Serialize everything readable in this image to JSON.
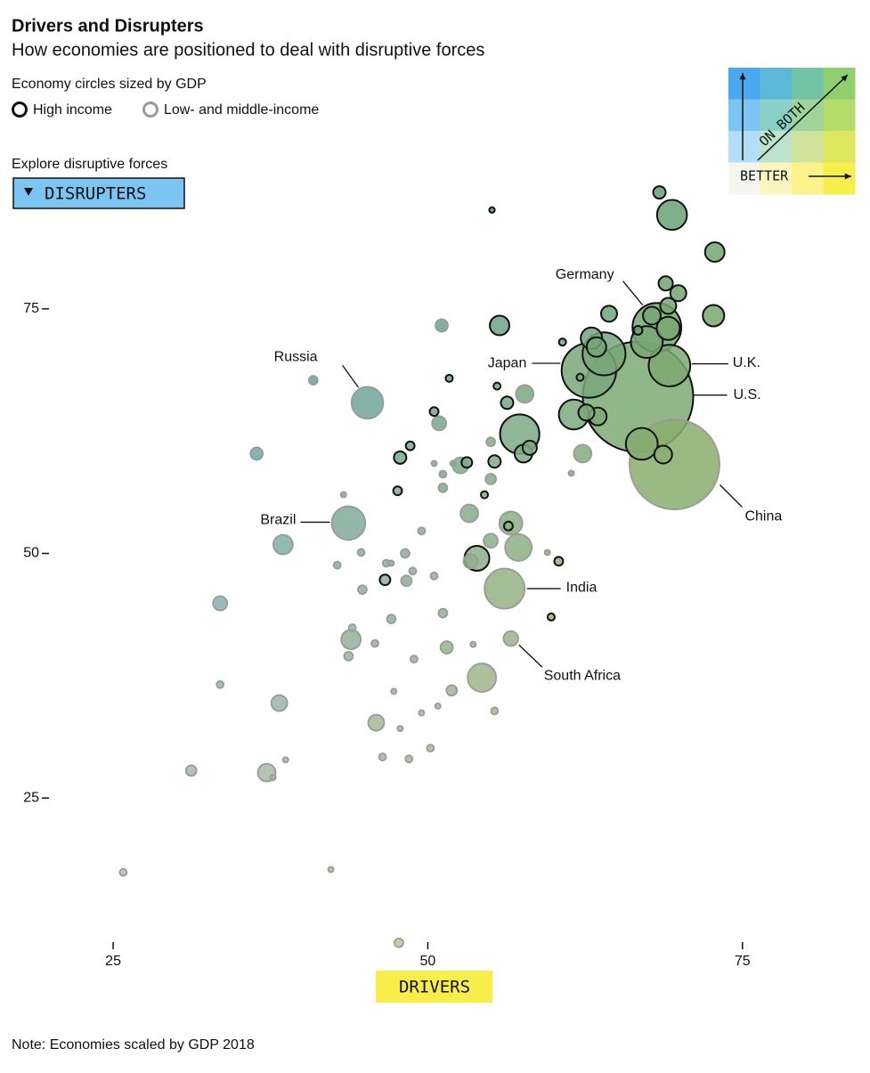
{
  "chart_data": {
    "type": "scatter",
    "title": "Drivers and Disrupters",
    "subtitle": "How economies are positioned to deal with disruptive forces",
    "size_note": "Economy circles sized by GDP",
    "control_label": "Explore disruptive forces",
    "ylabel": "DISRUPTERS",
    "xlabel": "DRIVERS",
    "note": "Note: Economies scaled by GDP 2018",
    "legend_grid": {
      "x_label": "BETTER",
      "diag_label": "ON BOTH",
      "colors": [
        [
          "#4aa8ef",
          "#5cb8d8",
          "#72c2a6",
          "#8fcf6f"
        ],
        [
          "#7cc4f2",
          "#88cfc8",
          "#9ed59a",
          "#b3dc6a"
        ],
        [
          "#b4def5",
          "#bde3cf",
          "#cfe49a",
          "#dde65c"
        ],
        [
          "#f4f5ee",
          "#fbf6c0",
          "#fbf389",
          "#f8ee4a"
        ]
      ]
    },
    "xlim": [
      17,
      84
    ],
    "ylim": [
      9,
      90
    ],
    "xticks": [
      25,
      50,
      75
    ],
    "yticks": [
      25,
      50,
      75
    ],
    "series": [
      {
        "name": "High income",
        "color": "#111111",
        "labels": [
          "U.S.",
          "Japan",
          "Germany",
          "U.K.",
          null,
          null,
          null,
          null,
          null,
          null,
          null,
          null,
          null,
          null,
          null,
          null,
          null,
          null,
          null,
          null,
          null,
          null,
          null,
          null,
          null,
          null,
          null,
          null,
          null,
          null,
          null,
          null,
          null,
          null,
          null,
          null,
          null,
          null,
          null,
          null,
          null,
          null,
          null,
          null,
          null,
          null
        ],
        "x": [
          66.7,
          62.8,
          68.2,
          69.2,
          68.4,
          69.4,
          72.8,
          68.9,
          69.9,
          69.1,
          64.4,
          67.8,
          69.1,
          67.4,
          66.7,
          72.7,
          55.7,
          60.7,
          63.0,
          64.0,
          63.4,
          62.1,
          55.5,
          56.3,
          61.6,
          62.6,
          63.5,
          57.3,
          58.1,
          57.6,
          67.0,
          68.7,
          51.7,
          50.5,
          55.1,
          48.6,
          47.8,
          53.1,
          55.3,
          47.6,
          54.5,
          56.4,
          53.9,
          60.4,
          46.6,
          59.8
        ],
        "values": [
          66.0,
          68.7,
          73.1,
          69.2,
          86.9,
          84.6,
          80.8,
          77.6,
          76.6,
          75.3,
          74.5,
          74.3,
          73.0,
          71.6,
          72.8,
          74.3,
          73.3,
          71.6,
          72.0,
          70.4,
          71.1,
          68.0,
          67.1,
          65.4,
          64.2,
          64.4,
          64.0,
          62.2,
          60.8,
          60.2,
          61.2,
          60.1,
          67.9,
          64.5,
          85.1,
          61.0,
          59.8,
          59.3,
          59.4,
          56.4,
          56.0,
          52.8,
          49.5,
          49.2,
          47.3,
          43.5
        ],
        "sizes": [
          20.5,
          5.0,
          4.0,
          2.9,
          0.26,
          1.5,
          0.64,
          0.34,
          0.43,
          0.43,
          0.43,
          0.53,
          0.9,
          1.7,
          0.13,
          0.77,
          0.64,
          0.085,
          0.77,
          3.1,
          0.64,
          0.085,
          0.085,
          0.26,
          1.5,
          0.43,
          0.53,
          2.6,
          0.34,
          0.53,
          1.7,
          0.53,
          0.085,
          0.13,
          0.05,
          0.13,
          0.26,
          0.19,
          0.26,
          0.13,
          0.085,
          0.13,
          1.04,
          0.13,
          0.19,
          0.085
        ]
      },
      {
        "name": "Low- and middle-income",
        "color": "#9a9a9a",
        "labels": [
          "China",
          "Russia",
          "Brazil",
          "India",
          "South Africa",
          null,
          null,
          null,
          null,
          null,
          null,
          null,
          null,
          null,
          null,
          null,
          null,
          null,
          null,
          null,
          null,
          null,
          null,
          null,
          null,
          null,
          null,
          null,
          null,
          null,
          null,
          null,
          null,
          null,
          null,
          null,
          null,
          null,
          null,
          null,
          null,
          null,
          null,
          null,
          null,
          null,
          null,
          null,
          null,
          null,
          null,
          null,
          null,
          null,
          null,
          null,
          null,
          null,
          null,
          null,
          null,
          null,
          null,
          null,
          null,
          null,
          null
        ],
        "x": [
          69.6,
          45.2,
          43.7,
          56.1,
          56.6,
          51.1,
          40.9,
          57.7,
          50.9,
          55.0,
          36.4,
          62.3,
          52.6,
          50.5,
          52.0,
          51.2,
          55.0,
          61.4,
          51.2,
          43.3,
          53.3,
          56.6,
          49.5,
          55.0,
          38.5,
          57.2,
          44.7,
          48.2,
          47.1,
          46.7,
          42.8,
          53.4,
          59.5,
          48.8,
          50.5,
          48.3,
          44.8,
          33.5,
          51.2,
          47.1,
          44.0,
          43.9,
          45.8,
          51.5,
          53.6,
          43.7,
          48.9,
          54.3,
          33.5,
          47.3,
          51.9,
          38.2,
          50.8,
          49.5,
          55.3,
          45.9,
          47.8,
          50.2,
          46.4,
          48.5,
          38.7,
          31.2,
          37.2,
          37.7,
          42.3,
          25.8,
          47.7
        ],
        "values": [
          59.1,
          65.4,
          53.1,
          46.4,
          41.3,
          73.3,
          67.7,
          66.3,
          63.3,
          61.4,
          60.2,
          60.2,
          59.0,
          59.2,
          59.2,
          58.1,
          57.6,
          58.2,
          56.7,
          56.0,
          54.1,
          53.1,
          52.3,
          51.3,
          50.9,
          50.6,
          50.1,
          50.0,
          49.0,
          49.0,
          48.8,
          49.2,
          50.1,
          48.2,
          47.7,
          47.2,
          46.3,
          44.9,
          43.9,
          43.3,
          42.4,
          41.2,
          40.8,
          40.4,
          40.7,
          39.5,
          39.2,
          37.3,
          36.6,
          35.9,
          36.0,
          34.7,
          34.4,
          33.7,
          33.9,
          32.7,
          32.1,
          30.1,
          29.2,
          29.0,
          28.9,
          27.8,
          27.6,
          27.1,
          17.7,
          17.4,
          10.2
        ],
        "sizes": [
          13.6,
          1.7,
          1.9,
          2.7,
          0.37,
          0.26,
          0.13,
          0.53,
          0.34,
          0.13,
          0.26,
          0.53,
          0.43,
          0.05,
          0.05,
          0.085,
          0.19,
          0.05,
          0.13,
          0.05,
          0.53,
          0.9,
          0.085,
          0.34,
          0.64,
          1.2,
          0.085,
          0.13,
          0.05,
          0.085,
          0.085,
          0.34,
          0.05,
          0.085,
          0.085,
          0.19,
          0.13,
          0.34,
          0.13,
          0.13,
          0.085,
          0.64,
          0.085,
          0.26,
          0.05,
          0.13,
          0.085,
          1.36,
          0.085,
          0.05,
          0.19,
          0.43,
          0.05,
          0.05,
          0.085,
          0.43,
          0.05,
          0.085,
          0.085,
          0.085,
          0.05,
          0.19,
          0.53,
          0.05,
          0.05,
          0.085,
          0.13
        ]
      }
    ]
  }
}
